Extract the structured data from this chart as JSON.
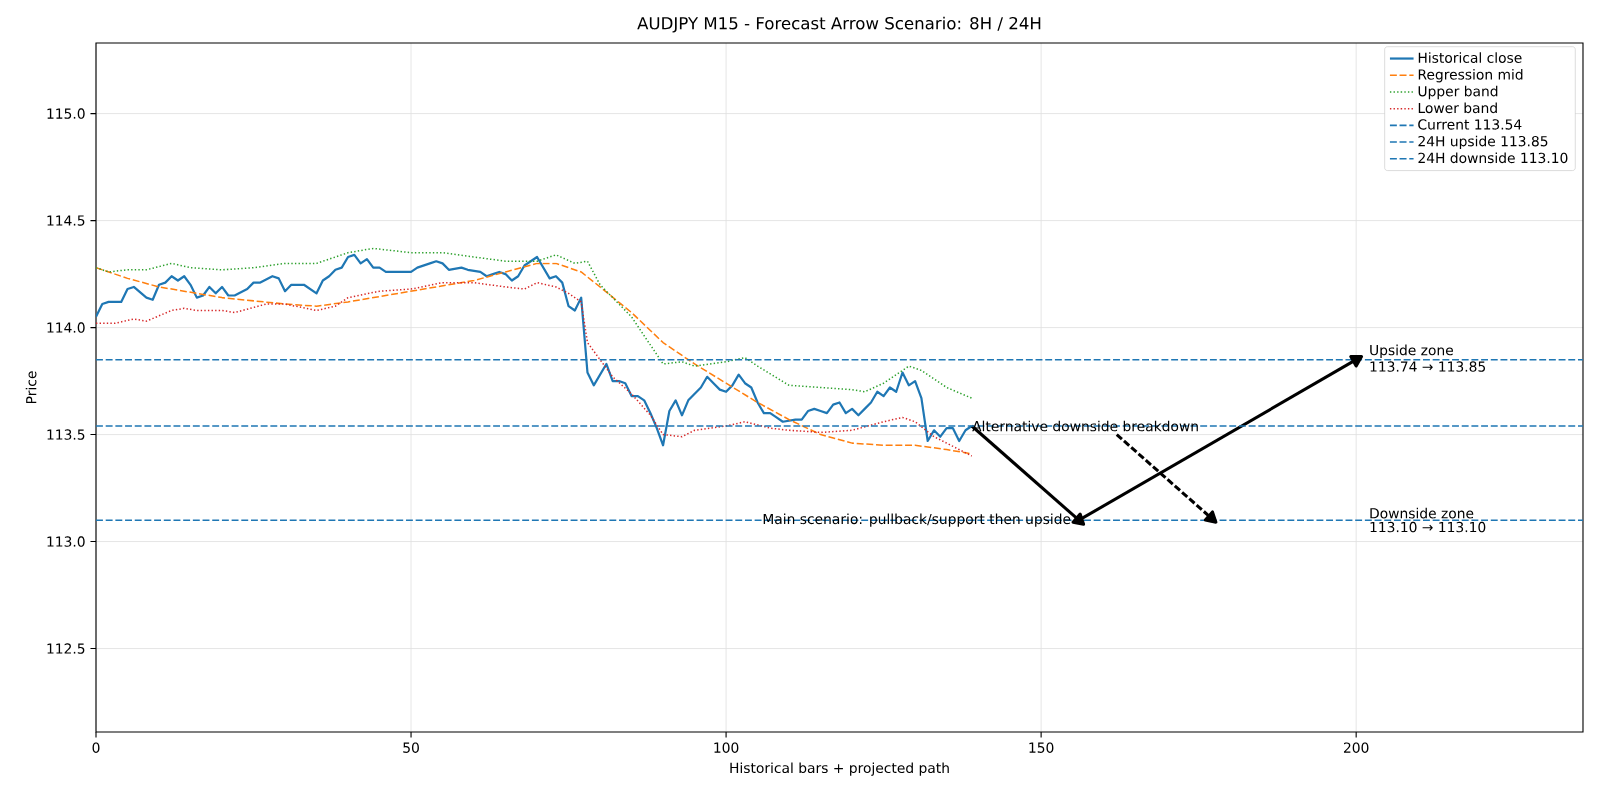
{
  "chart_data": {
    "type": "line",
    "title": "AUDJPY M15 - Forecast Arrow Scenario: 8H / 24H",
    "xlabel": "Historical bars + projected path",
    "ylabel": "Price",
    "xlim": [
      0,
      236
    ],
    "ylim": [
      112.11,
      115.33
    ],
    "xticks": [
      0,
      50,
      100,
      150,
      200
    ],
    "yticks": [
      {
        "value": 112.5,
        "label": "112.5"
      },
      {
        "value": 113.0,
        "label": "113.0"
      },
      {
        "value": 113.5,
        "label": "113.5"
      },
      {
        "value": 114.0,
        "label": "114.0"
      },
      {
        "value": 114.5,
        "label": "114.5"
      },
      {
        "value": 115.0,
        "label": "115.0"
      }
    ],
    "grid": true,
    "legend": "top right",
    "marker": "none",
    "series": [
      {
        "name": "Historical close",
        "color": "#1f77b4",
        "line_style": "solid",
        "x": [
          0,
          1,
          2,
          4,
          5,
          6,
          8,
          9,
          10,
          11,
          12,
          13,
          14,
          15,
          16,
          17,
          18,
          19,
          20,
          21,
          22,
          24,
          25,
          26,
          28,
          29,
          30,
          31,
          33,
          35,
          36,
          37,
          38,
          39,
          40,
          41,
          42,
          43,
          44,
          45,
          46,
          48,
          50,
          51,
          53,
          54,
          55,
          56,
          58,
          59,
          61,
          62,
          63,
          64,
          65,
          66,
          67,
          68,
          70,
          72,
          73,
          74,
          75,
          76,
          77,
          78,
          79,
          80,
          81,
          82,
          83,
          84,
          85,
          86,
          87,
          88,
          89,
          90,
          91,
          92,
          93,
          94,
          96,
          97,
          98,
          99,
          100,
          101,
          102,
          103,
          104,
          105,
          106,
          107,
          108,
          109,
          111,
          112,
          113,
          114,
          115,
          116,
          117,
          118,
          119,
          120,
          121,
          122,
          123,
          124,
          125,
          126,
          127,
          128,
          129,
          130,
          131,
          132,
          133,
          134,
          135,
          136,
          137,
          138,
          139
        ],
        "values": [
          114.05,
          114.11,
          114.12,
          114.12,
          114.18,
          114.19,
          114.14,
          114.13,
          114.2,
          114.21,
          114.24,
          114.22,
          114.24,
          114.2,
          114.14,
          114.15,
          114.19,
          114.16,
          114.19,
          114.15,
          114.15,
          114.18,
          114.21,
          114.21,
          114.24,
          114.23,
          114.17,
          114.2,
          114.2,
          114.16,
          114.22,
          114.24,
          114.27,
          114.28,
          114.33,
          114.34,
          114.3,
          114.32,
          114.28,
          114.28,
          114.26,
          114.26,
          114.26,
          114.28,
          114.3,
          114.31,
          114.3,
          114.27,
          114.28,
          114.27,
          114.26,
          114.24,
          114.25,
          114.26,
          114.25,
          114.22,
          114.24,
          114.29,
          114.33,
          114.23,
          114.24,
          114.21,
          114.1,
          114.08,
          114.14,
          113.79,
          113.73,
          113.78,
          113.83,
          113.75,
          113.75,
          113.74,
          113.68,
          113.68,
          113.66,
          113.6,
          113.53,
          113.45,
          113.61,
          113.66,
          113.59,
          113.66,
          113.72,
          113.77,
          113.74,
          113.71,
          113.7,
          113.73,
          113.78,
          113.74,
          113.72,
          113.65,
          113.6,
          113.6,
          113.58,
          113.56,
          113.57,
          113.57,
          113.61,
          113.62,
          113.61,
          113.6,
          113.64,
          113.65,
          113.6,
          113.62,
          113.59,
          113.62,
          113.65,
          113.7,
          113.68,
          113.72,
          113.7,
          113.79,
          113.73,
          113.75,
          113.67,
          113.47,
          113.52,
          113.49,
          113.53,
          113.53,
          113.47,
          113.52,
          113.54
        ]
      },
      {
        "name": "Regression mid",
        "color": "#ff7f0e",
        "line_style": "dashed",
        "x": [
          0,
          5,
          10,
          20,
          30,
          35,
          40,
          50,
          60,
          65,
          70,
          73,
          77,
          80,
          85,
          90,
          95,
          100,
          105,
          110,
          115,
          120,
          125,
          130,
          135,
          139
        ],
        "values": [
          114.28,
          114.23,
          114.19,
          114.14,
          114.11,
          114.1,
          114.12,
          114.17,
          114.22,
          114.26,
          114.3,
          114.3,
          114.26,
          114.19,
          114.07,
          113.93,
          113.83,
          113.74,
          113.65,
          113.57,
          113.5,
          113.46,
          113.45,
          113.45,
          113.43,
          113.41
        ]
      },
      {
        "name": "Upper band",
        "color": "#2ca02c",
        "line_style": "dotted",
        "x": [
          0,
          2,
          5,
          8,
          12,
          15,
          20,
          25,
          30,
          35,
          40,
          44,
          50,
          55,
          60,
          65,
          70,
          73,
          76,
          78,
          80,
          85,
          90,
          93,
          95,
          100,
          103,
          105,
          110,
          115,
          120,
          122,
          125,
          129,
          131,
          135,
          139
        ],
        "values": [
          114.28,
          114.26,
          114.27,
          114.27,
          114.3,
          114.28,
          114.27,
          114.28,
          114.3,
          114.3,
          114.35,
          114.37,
          114.35,
          114.35,
          114.33,
          114.31,
          114.31,
          114.34,
          114.3,
          114.31,
          114.2,
          114.05,
          113.83,
          113.84,
          113.82,
          113.84,
          113.86,
          113.82,
          113.73,
          113.72,
          113.71,
          113.7,
          113.74,
          113.82,
          113.8,
          113.72,
          113.67
        ]
      },
      {
        "name": "Lower band",
        "color": "#d62728",
        "line_style": "dotted",
        "x": [
          0,
          3,
          6,
          8,
          12,
          14,
          16,
          20,
          22,
          27,
          30,
          35,
          38,
          40,
          45,
          50,
          55,
          60,
          65,
          68,
          70,
          73,
          75,
          77,
          78,
          82,
          85,
          88,
          90,
          93,
          95,
          100,
          103,
          107,
          110,
          115,
          120,
          125,
          128,
          130,
          133,
          135,
          139
        ],
        "values": [
          114.02,
          114.02,
          114.04,
          114.03,
          114.08,
          114.09,
          114.08,
          114.08,
          114.07,
          114.11,
          114.11,
          114.08,
          114.1,
          114.14,
          114.17,
          114.18,
          114.21,
          114.21,
          114.19,
          114.18,
          114.21,
          114.19,
          114.16,
          114.12,
          113.93,
          113.77,
          113.69,
          113.59,
          113.5,
          113.49,
          113.52,
          113.54,
          113.56,
          113.53,
          113.52,
          113.51,
          113.52,
          113.56,
          113.58,
          113.56,
          113.49,
          113.46,
          113.4
        ]
      },
      {
        "color": "#000000",
        "line_style": "solid",
        "marker": "triangle",
        "x": [
          139,
          156
        ],
        "values": [
          113.54,
          113.1
        ]
      },
      {
        "color": "#000000",
        "line_style": "solid",
        "marker": "triangle",
        "x": [
          156,
          200
        ],
        "values": [
          113.1,
          113.85
        ]
      },
      {
        "color": "#000000",
        "line_style": "dashed",
        "marker": "triangle",
        "x": [
          162,
          177
        ],
        "values": [
          113.5,
          113.11
        ]
      }
    ],
    "ref_lines": [
      {
        "axis": "y",
        "value": 113.54,
        "label": "Current 113.54",
        "color": "#1f77b4",
        "line_style": "dashed"
      },
      {
        "axis": "y",
        "value": 113.85,
        "label": "24H upside 113.85",
        "color": "#1f77b4",
        "line_style": "dashed"
      },
      {
        "axis": "y",
        "value": 113.1,
        "label": "24H downside 113.10",
        "color": "#1f77b4",
        "line_style": "dashed"
      }
    ],
    "annotations": [
      {
        "text": "Main scenario: pullback/support then upside",
        "x": 155,
        "y": 113.1
      },
      {
        "text": "Alternative downside breakdown",
        "x": 139,
        "y": 113.54
      },
      {
        "text": "Upside zone",
        "x": 202,
        "y": 113.85
      },
      {
        "text": "113.74 → 113.85",
        "x": 202,
        "y": 113.85
      },
      {
        "text": "Downside zone",
        "x": 202,
        "y": 113.1
      },
      {
        "text": "113.10 → 113.10",
        "x": 202,
        "y": 113.1
      }
    ]
  }
}
